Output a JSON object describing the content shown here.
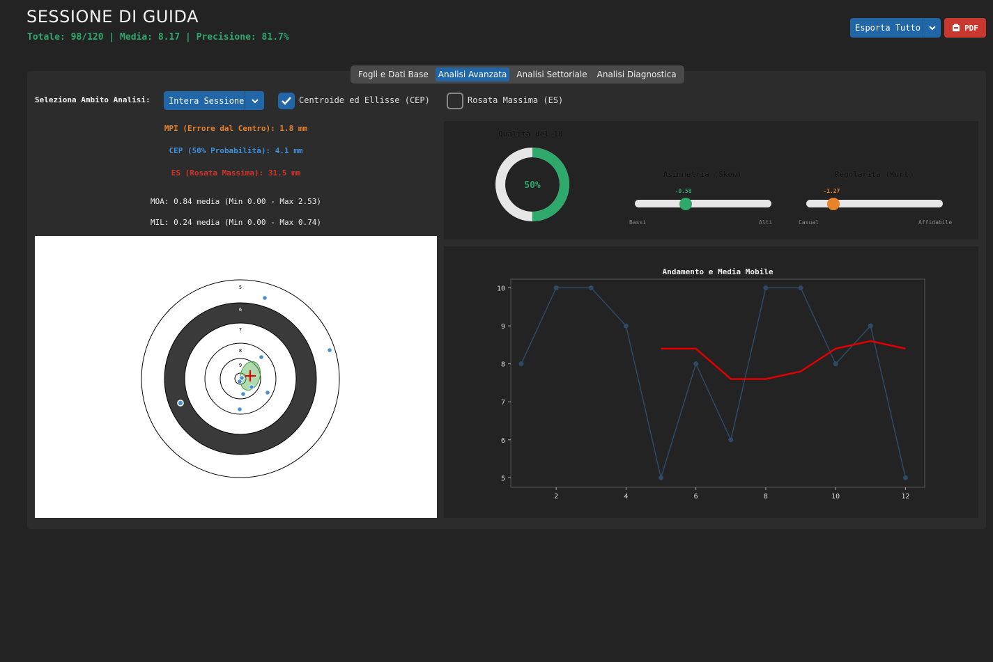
{
  "header": {
    "title": "SESSIONE DI GUIDA",
    "stats": "Totale: 98/120 | Media: 8.17 | Precisione: 81.7%",
    "export_label": "Esporta Tutto",
    "pdf_label": "PDF"
  },
  "tabs": [
    {
      "label": "Fogli e Dati Base",
      "active": false
    },
    {
      "label": "Analisi Avanzata",
      "active": true
    },
    {
      "label": "Analisi Settoriale",
      "active": false
    },
    {
      "label": "Analisi Diagnostica",
      "active": false
    }
  ],
  "controls": {
    "scope_label": "Seleziona Ambito Analisi:",
    "scope_value": "Intera Sessione",
    "cep_label": "Centroide ed Ellisse (CEP)",
    "cep_checked": true,
    "es_label": "Rosata Massima (ES)",
    "es_checked": false
  },
  "metrics": {
    "mpi": "MPI (Errore dal Centro): 1.8 mm",
    "cep": "CEP (50% Probabilità): 4.1 mm",
    "es": "ES (Rosata Massima): 31.5 mm",
    "moa": "MOA: 0.84 media (Min 0.00 - Max 2.53)",
    "mil": "MIL: 0.24 media (Min 0.00 - Max 0.74)",
    "colors": {
      "mpi": "#e8832a",
      "cep": "#3f8fd6",
      "es": "#d2352b"
    }
  },
  "target": {
    "ring_labels": [
      "5",
      "6",
      "7",
      "8",
      "9"
    ]
  },
  "quality": {
    "title": "Qualità del 10",
    "value_label": "50%",
    "percent": 50,
    "color": "#2fa86c"
  },
  "skew": {
    "title": "Asimmetria (Skew)",
    "value_label": "-0.58",
    "level": 0.37,
    "left_label": "Bassi",
    "right_label": "Alti",
    "color": "#2fa86c"
  },
  "kurt": {
    "title": "Regolarità (Kurt)",
    "value_label": "-1.27",
    "level": 0.2,
    "left_label": "Casual",
    "right_label": "Affidabile",
    "color": "#e8832a"
  },
  "chart_data": {
    "type": "line",
    "title": "Andamento e Media Mobile",
    "x": [
      1,
      2,
      3,
      4,
      5,
      6,
      7,
      8,
      9,
      10,
      11,
      12
    ],
    "series": [
      {
        "values": [
          8,
          10,
          10,
          9,
          5,
          8,
          6,
          10,
          10,
          8,
          9,
          5
        ],
        "color": "#2e4a66"
      },
      {
        "values": [
          null,
          null,
          null,
          null,
          8.4,
          8.4,
          7.6,
          7.6,
          7.8,
          8.4,
          8.6,
          8.4
        ],
        "color": "#e00000"
      }
    ],
    "xticks": [
      2,
      4,
      6,
      8,
      10,
      12
    ],
    "yticks": [
      5,
      6,
      7,
      8,
      9,
      10
    ],
    "xlim": [
      0.7,
      12.55
    ],
    "ylim": [
      4.75,
      10.23
    ]
  }
}
